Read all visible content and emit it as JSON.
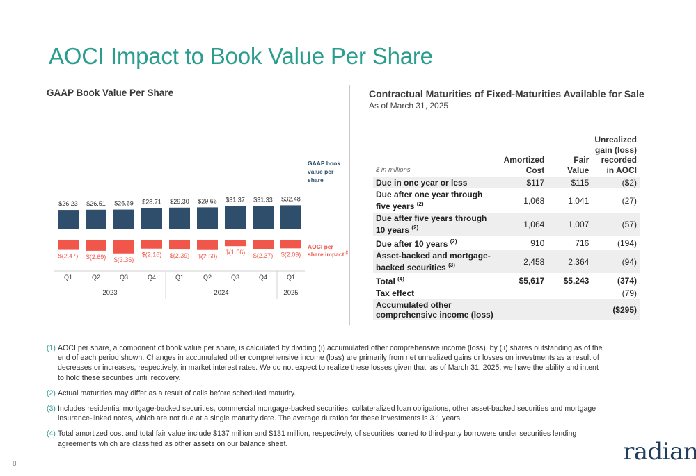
{
  "page": {
    "title": "AOCI Impact to Book Value Per Share",
    "page_number": "8",
    "logo_text": "radian"
  },
  "chart_data": {
    "type": "bar",
    "title": "GAAP Book Value Per Share",
    "categories": [
      "Q1",
      "Q2",
      "Q3",
      "Q4",
      "Q1",
      "Q2",
      "Q3",
      "Q4",
      "Q1"
    ],
    "year_groups": [
      {
        "label": "2023",
        "span": 4
      },
      {
        "label": "2024",
        "span": 4
      },
      {
        "label": "2025",
        "span": 1
      }
    ],
    "series": [
      {
        "name": "GAAP book value per share",
        "values": [
          26.23,
          26.51,
          26.69,
          28.71,
          29.3,
          29.66,
          31.37,
          31.33,
          32.48
        ],
        "labels": [
          "$26.23",
          "$26.51",
          "$26.69",
          "$28.71",
          "$29.30",
          "$29.66",
          "$31.37",
          "$31.33",
          "$32.48"
        ],
        "color": "#2f4e6b"
      },
      {
        "name": "AOCI per share impact",
        "name_superscript": "(1)",
        "values": [
          -2.47,
          -2.69,
          -3.35,
          -2.16,
          -2.39,
          -2.5,
          -1.56,
          -2.37,
          -2.09
        ],
        "labels": [
          "$(2.47)",
          "$(2.69)",
          "$(3.35)",
          "$(2.16)",
          "$(2.39)",
          "$(2.50)",
          "$(1.56)",
          "$(2.37)",
          "$(2.09)"
        ],
        "color": "#f0574a"
      }
    ],
    "legend_labels": {
      "book_value": [
        "GAAP book",
        "value per",
        "share"
      ],
      "aoci": [
        "AOCI per",
        "share impact"
      ]
    },
    "grid": false
  },
  "table": {
    "title": "Contractual Maturities of Fixed-Maturities Available for Sale",
    "subtitle": "As of March 31, 2025",
    "units_label": "$ in millions",
    "headers": {
      "amortized": "Amortized Cost",
      "fair": "Fair Value",
      "unrealized": "Unrealized gain (loss) recorded in AOCI"
    },
    "rows": [
      {
        "label": "Due in one year or less",
        "sup": "",
        "amortized": "$117",
        "fair": "$115",
        "unrealized": "($2)"
      },
      {
        "label": "Due after one year through five years",
        "sup": "(2)",
        "amortized": "1,068",
        "fair": "1,041",
        "unrealized": "(27)"
      },
      {
        "label": "Due after five years through 10 years",
        "sup": "(2)",
        "amortized": "1,064",
        "fair": "1,007",
        "unrealized": "(57)"
      },
      {
        "label": "Due after 10 years",
        "sup": "(2)",
        "amortized": "910",
        "fair": "716",
        "unrealized": "(194)"
      },
      {
        "label": "Asset-backed and mortgage-backed securities",
        "sup": "(3)",
        "amortized": "2,458",
        "fair": "2,364",
        "unrealized": "(94)"
      }
    ],
    "total": {
      "label": "Total",
      "sup": "(4)",
      "amortized": "$5,617",
      "fair": "$5,243",
      "unrealized": "(374)"
    },
    "tax": {
      "label": "Tax effect",
      "unrealized": "(79)"
    },
    "aoci": {
      "label": "Accumulated other comprehensive income (loss)",
      "unrealized": "($295)"
    }
  },
  "footnotes": [
    {
      "num": "(1)",
      "text": "AOCI per share, a component of book value per share, is calculated by dividing (i) accumulated other comprehensive income (loss), by (ii) shares outstanding as of the end of each period shown. Changes in accumulated other comprehensive income (loss) are primarily from net unrealized gains or losses on investments as a result of decreases or increases, respectively, in market interest rates. We do not expect to realize these losses given that, as of March 31, 2025, we have the ability and intent to hold these securities until recovery."
    },
    {
      "num": "(2)",
      "text": "Actual maturities may differ as a result of calls before scheduled maturity."
    },
    {
      "num": "(3)",
      "text": "Includes residential mortgage-backed securities, commercial mortgage-backed securities, collateralized loan obligations, other asset-backed securities and mortgage insurance-linked notes, which are not due at a single maturity date. The average duration for these investments is 3.1 years."
    },
    {
      "num": "(4)",
      "text": "Total amortized cost and total fair value include $137 million and $131 million, respectively, of securities loaned to third-party borrowers under securities lending agreements which are classified as other assets on our balance sheet."
    }
  ]
}
